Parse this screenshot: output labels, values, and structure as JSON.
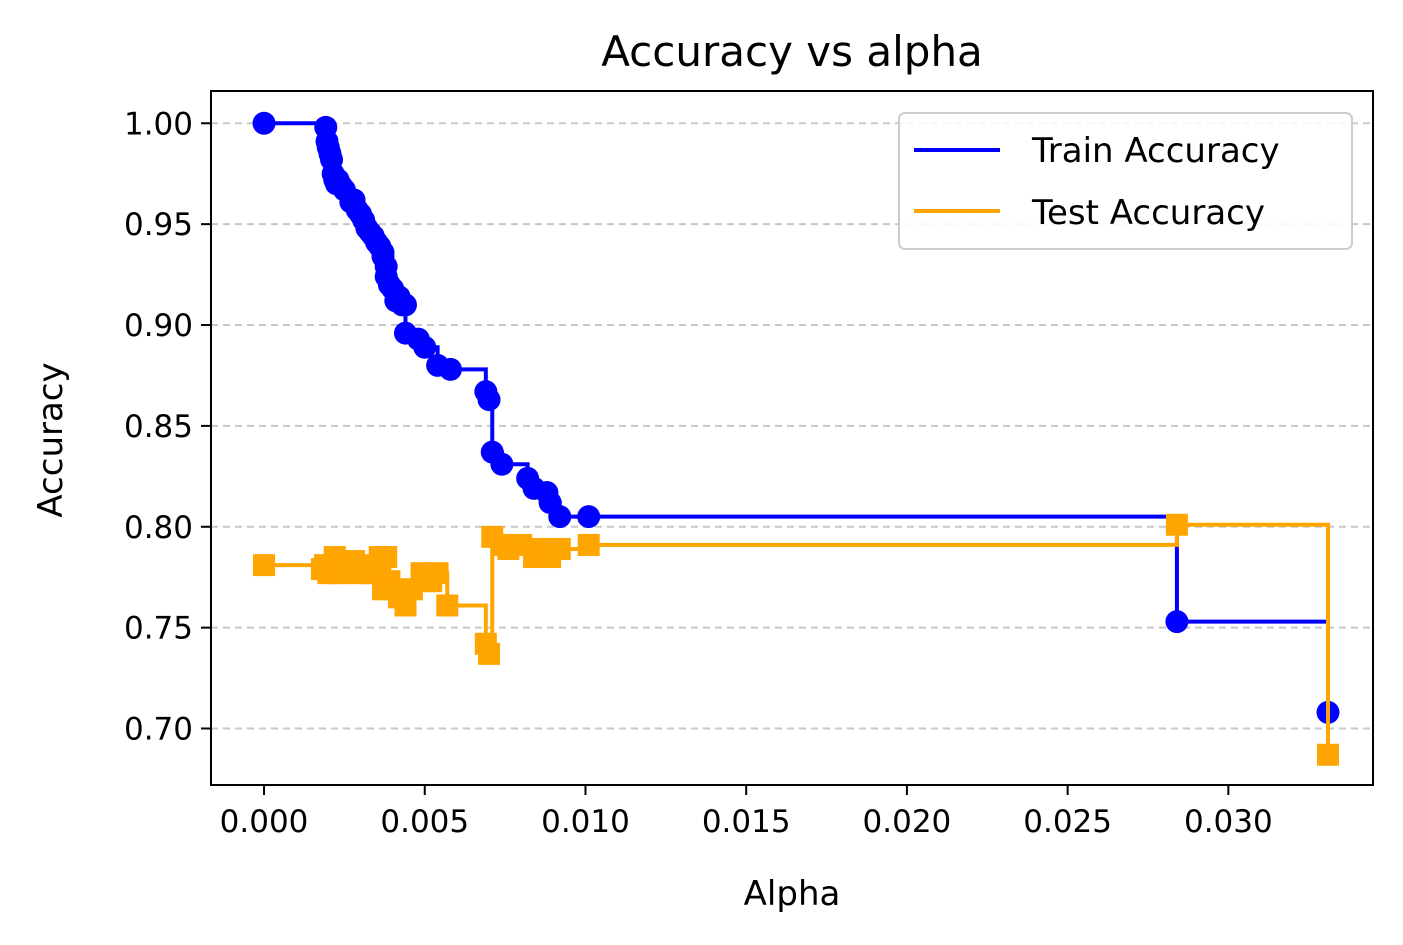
{
  "chart_data": {
    "type": "line",
    "title": "Accuracy vs alpha",
    "xlabel": "Alpha",
    "ylabel": "Accuracy",
    "xlim": [
      -0.00165,
      0.0345
    ],
    "ylim": [
      0.672,
      1.016
    ],
    "xticks": [
      0.0,
      0.005,
      0.01,
      0.015,
      0.02,
      0.025,
      0.03
    ],
    "xtick_labels": [
      "0.000",
      "0.005",
      "0.010",
      "0.015",
      "0.020",
      "0.025",
      "0.030"
    ],
    "yticks": [
      0.7,
      0.75,
      0.8,
      0.85,
      0.9,
      0.95,
      1.0
    ],
    "ytick_labels": [
      "0.70",
      "0.75",
      "0.80",
      "0.85",
      "0.90",
      "0.95",
      "1.00"
    ],
    "grid": "y-dashed",
    "legend_position": "top-right",
    "series": [
      {
        "name": "Train Accuracy",
        "color": "#0000ff",
        "marker": "circle",
        "drawstyle": "steps-post",
        "x": [
          0.0,
          0.00192,
          0.00196,
          0.002,
          0.00205,
          0.0021,
          0.00215,
          0.0022,
          0.00225,
          0.0023,
          0.0024,
          0.0025,
          0.0027,
          0.0028,
          0.0029,
          0.003,
          0.0031,
          0.0032,
          0.0033,
          0.0034,
          0.0035,
          0.0036,
          0.0037,
          0.0037,
          0.0038,
          0.0038,
          0.0039,
          0.004,
          0.0041,
          0.0042,
          0.0043,
          0.0044,
          0.0044,
          0.0048,
          0.005,
          0.0054,
          0.0058,
          0.0069,
          0.007,
          0.0071,
          0.0074,
          0.0082,
          0.0084,
          0.0088,
          0.0089,
          0.0092,
          0.0101,
          0.0284,
          0.0331
        ],
        "y": [
          1.0,
          0.998,
          0.991,
          0.988,
          0.985,
          0.982,
          0.975,
          0.972,
          0.97,
          0.972,
          0.969,
          0.967,
          0.961,
          0.962,
          0.957,
          0.955,
          0.952,
          0.948,
          0.946,
          0.944,
          0.941,
          0.939,
          0.934,
          0.936,
          0.929,
          0.924,
          0.92,
          0.918,
          0.912,
          0.914,
          0.91,
          0.91,
          0.896,
          0.893,
          0.889,
          0.88,
          0.878,
          0.867,
          0.863,
          0.837,
          0.831,
          0.824,
          0.819,
          0.817,
          0.812,
          0.805,
          0.805,
          0.753,
          0.708
        ]
      },
      {
        "name": "Test Accuracy",
        "color": "#ffa500",
        "marker": "square",
        "drawstyle": "steps-post",
        "x": [
          0.0,
          0.0018,
          0.0019,
          0.002,
          0.0022,
          0.0023,
          0.0024,
          0.0026,
          0.0028,
          0.003,
          0.0032,
          0.0034,
          0.0036,
          0.0037,
          0.0038,
          0.0039,
          0.004,
          0.0042,
          0.0044,
          0.0046,
          0.0049,
          0.0052,
          0.0054,
          0.0057,
          0.0069,
          0.007,
          0.0071,
          0.0074,
          0.0076,
          0.008,
          0.0084,
          0.0086,
          0.0089,
          0.0092,
          0.0101,
          0.0284,
          0.0331
        ],
        "y": [
          0.781,
          0.779,
          0.781,
          0.777,
          0.785,
          0.781,
          0.777,
          0.779,
          0.783,
          0.777,
          0.781,
          0.777,
          0.785,
          0.769,
          0.785,
          0.773,
          0.769,
          0.765,
          0.761,
          0.769,
          0.777,
          0.773,
          0.777,
          0.761,
          0.742,
          0.737,
          0.795,
          0.791,
          0.789,
          0.791,
          0.785,
          0.789,
          0.785,
          0.789,
          0.791,
          0.801,
          0.687
        ]
      }
    ]
  }
}
